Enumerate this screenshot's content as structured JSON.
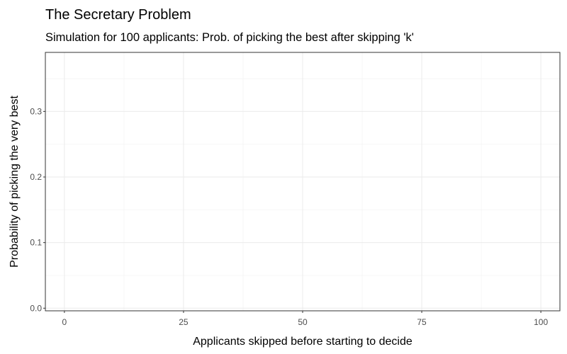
{
  "chart_data": {
    "type": "line",
    "title": "The Secretary Problem",
    "subtitle": "Simulation for 100 applicants: Prob. of picking the best after skipping 'k'",
    "xlabel": "Applicants skipped before starting to decide",
    "ylabel": "Probability of picking the very best",
    "xlim": [
      -4,
      104
    ],
    "ylim": [
      -0.004,
      0.39
    ],
    "x_ticks": [
      0,
      25,
      50,
      75,
      100
    ],
    "x_tick_labels": [
      "0",
      "25",
      "50",
      "75",
      "100"
    ],
    "y_ticks": [
      0,
      0.1,
      0.2,
      0.3
    ],
    "y_tick_labels": [
      "0.0",
      "0.1",
      "0.2",
      "0.3"
    ],
    "grid": true,
    "series": [],
    "colors": {
      "panel_border": "#333333",
      "grid_major": "#ebebeb",
      "grid_minor": "#f5f5f5",
      "tick_text": "#4d4d4d"
    }
  }
}
